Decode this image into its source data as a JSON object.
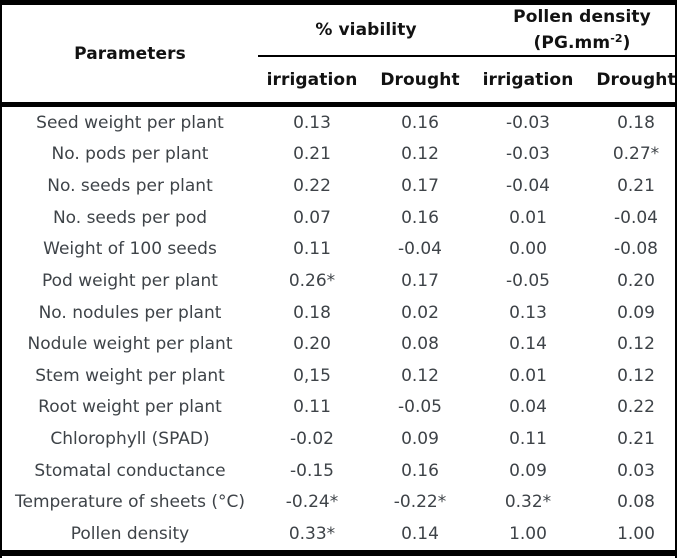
{
  "table": {
    "colors": {
      "border": "#000000",
      "header_text": "#121212",
      "data_text": "#3e4348"
    },
    "header": {
      "parameters_label": "Parameters",
      "group1_label": "% viability",
      "group2_line1": "Pollen density",
      "group2_unit_prefix": "(PG.mm",
      "group2_unit_sup": "-2",
      "group2_unit_suffix": ")",
      "subheaders": [
        "irrigation",
        "Drought",
        "irrigation",
        "Drought"
      ]
    },
    "rows": [
      {
        "param": "Seed weight per plant",
        "values": [
          "0.13",
          "0.16",
          "-0.03",
          "0.18"
        ]
      },
      {
        "param": "No. pods per plant",
        "values": [
          "0.21",
          "0.12",
          "-0.03",
          "0.27*"
        ]
      },
      {
        "param": "No. seeds per plant",
        "values": [
          "0.22",
          "0.17",
          "-0.04",
          "0.21"
        ]
      },
      {
        "param": "No. seeds per pod",
        "values": [
          "0.07",
          "0.16",
          "0.01",
          "-0.04"
        ]
      },
      {
        "param": "Weight of 100 seeds",
        "values": [
          "0.11",
          "-0.04",
          "0.00",
          "-0.08"
        ]
      },
      {
        "param": "Pod weight per plant",
        "values": [
          "0.26*",
          "0.17",
          "-0.05",
          "0.20"
        ]
      },
      {
        "param": "No. nodules per plant",
        "values": [
          "0.18",
          "0.02",
          "0.13",
          "0.09"
        ]
      },
      {
        "param": "Nodule weight per plant",
        "values": [
          "0.20",
          "0.08",
          "0.14",
          "0.12"
        ]
      },
      {
        "param": "Stem weight per plant",
        "values": [
          "0,15",
          "0.12",
          "0.01",
          "0.12"
        ]
      },
      {
        "param": "Root weight per plant",
        "values": [
          "0.11",
          "-0.05",
          "0.04",
          "0.22"
        ]
      },
      {
        "param": "Chlorophyll (SPAD)",
        "values": [
          "-0.02",
          "0.09",
          "0.11",
          "0.21"
        ]
      },
      {
        "param": "Stomatal conductance",
        "values": [
          "-0.15",
          "0.16",
          "0.09",
          "0.03"
        ]
      },
      {
        "param": "Temperature of sheets (°C)",
        "values": [
          "-0.24*",
          "-0.22*",
          "0.32*",
          "0.08"
        ]
      },
      {
        "param": "Pollen density",
        "values": [
          "0.33*",
          "0.14",
          "1.00",
          "1.00"
        ]
      }
    ]
  }
}
